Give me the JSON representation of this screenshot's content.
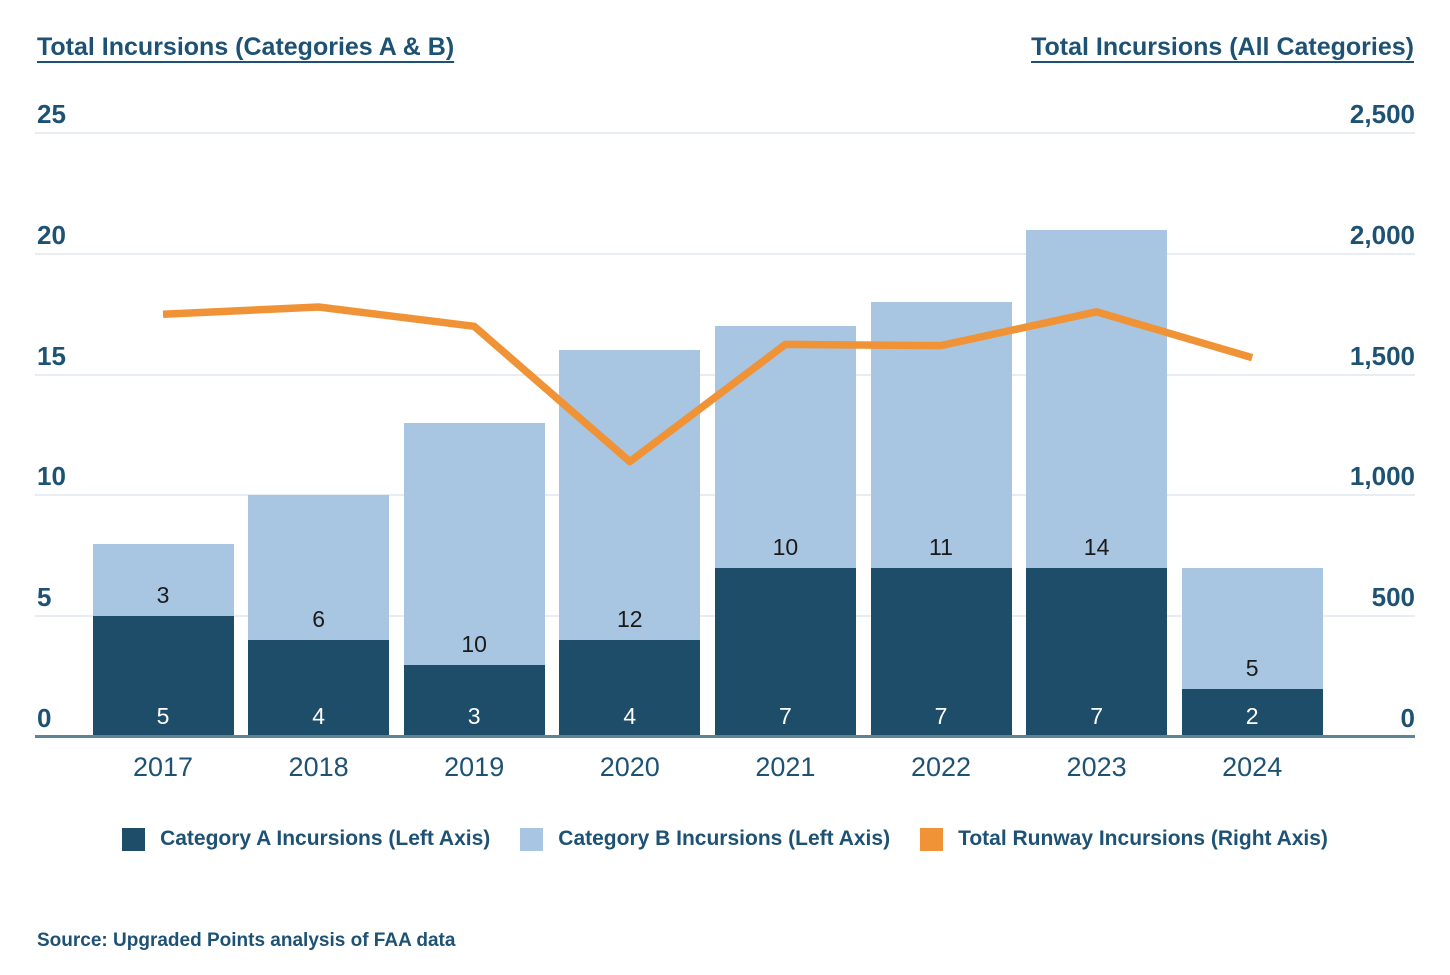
{
  "titles": {
    "left": "Total Incursions (Categories A & B)",
    "right": "Total Incursions (All Categories)"
  },
  "source": "Source: Upgraded Points analysis of FAA data",
  "colors": {
    "category_a": "#1E4D69",
    "category_b": "#A8C6E1",
    "line": "#EF9336",
    "text": "#1E5274",
    "gridline": "#E7EDF2",
    "axis_line": "#5E8397",
    "label_on_dark": "#FFFFFF",
    "label_on_light": "#1A1A1A"
  },
  "chart_data": {
    "type": "bar",
    "stacked": true,
    "grid": true,
    "legend_position": "bottom",
    "title_left": "Total Incursions (Categories A & B)",
    "title_right": "Total Incursions (All Categories)",
    "categories": [
      "2017",
      "2018",
      "2019",
      "2020",
      "2021",
      "2022",
      "2023",
      "2024"
    ],
    "series": [
      {
        "name": "Category A Incursions (Left Axis)",
        "type": "bar",
        "axis": "left",
        "color_key": "category_a",
        "values": [
          5,
          4,
          3,
          4,
          7,
          7,
          7,
          2
        ]
      },
      {
        "name": "Category B Incursions (Left Axis)",
        "type": "bar",
        "axis": "left",
        "color_key": "category_b",
        "values": [
          3,
          6,
          10,
          12,
          10,
          11,
          14,
          5
        ]
      },
      {
        "name": "Total Runway Incursions (Right Axis)",
        "type": "line",
        "axis": "right",
        "color_key": "line",
        "values": [
          1750,
          1780,
          1700,
          1140,
          1625,
          1620,
          1760,
          1570
        ]
      }
    ],
    "left_axis": {
      "range": [
        0,
        25
      ],
      "tick_values": [
        0,
        5,
        10,
        15,
        20,
        25
      ],
      "tick_labels": [
        "0",
        "5",
        "10",
        "15",
        "20",
        "25"
      ]
    },
    "right_axis": {
      "range": [
        0,
        2500
      ],
      "tick_values": [
        0,
        500,
        1000,
        1500,
        2000,
        2500
      ],
      "tick_labels": [
        "0",
        "500",
        "1,000",
        "1,500",
        "2,000",
        "2,500"
      ]
    }
  },
  "legend": {
    "items": [
      {
        "label": "Category A Incursions (Left Axis)",
        "color_key": "category_a",
        "swatch": "square"
      },
      {
        "label": "Category B Incursions (Left Axis)",
        "color_key": "category_b",
        "swatch": "square"
      },
      {
        "label": "Total Runway Incursions (Right Axis)",
        "color_key": "line",
        "swatch": "square"
      }
    ]
  }
}
